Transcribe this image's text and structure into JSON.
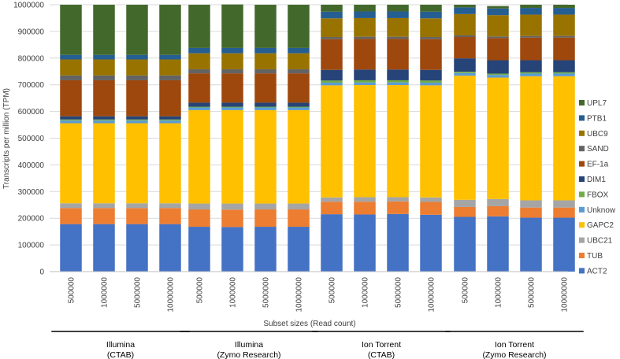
{
  "chart_data": {
    "type": "stacked-bar",
    "title": "",
    "xlabel": "Subset sizes (Read count)",
    "ylabel": "Transcripts per million (TPM)",
    "ylim": [
      0,
      1000000
    ],
    "yticks": [
      0,
      100000,
      200000,
      300000,
      400000,
      500000,
      600000,
      700000,
      800000,
      900000,
      1000000
    ],
    "grid": true,
    "legend_position": "right",
    "categories": [
      "500000",
      "1000000",
      "5000000",
      "10000000",
      "500000",
      "1000000",
      "5000000",
      "10000000",
      "500000",
      "1000000",
      "5000000",
      "10000000",
      "500000",
      "1000000",
      "5000000",
      "10000000"
    ],
    "groups": [
      {
        "line1": "Illumina",
        "line2": "(CTAB)"
      },
      {
        "line1": "Illumina",
        "line2": "(Zymo Research)"
      },
      {
        "line1": "Ion Torrent",
        "line2": "(CTAB)"
      },
      {
        "line1": "Ion Torrent",
        "line2": "(Zymo Research)"
      }
    ],
    "series": [
      {
        "name": "ACT2",
        "color": "#4472C4",
        "values": [
          178000,
          178000,
          178000,
          178000,
          168000,
          167000,
          168000,
          168000,
          215000,
          214000,
          216000,
          213000,
          205000,
          207000,
          202000,
          202000
        ]
      },
      {
        "name": "TUB",
        "color": "#ED7D31",
        "values": [
          60000,
          60000,
          60000,
          60000,
          65000,
          65000,
          65000,
          65000,
          47000,
          48000,
          47000,
          48000,
          37000,
          38000,
          38000,
          38000
        ]
      },
      {
        "name": "UBC21",
        "color": "#A5A5A5",
        "values": [
          18000,
          18000,
          18000,
          18000,
          22000,
          23000,
          22000,
          22000,
          16000,
          17000,
          16000,
          17000,
          27000,
          27000,
          27000,
          27000
        ]
      },
      {
        "name": "GAPC2",
        "color": "#FFC000",
        "values": [
          300000,
          300000,
          300000,
          300000,
          350000,
          350000,
          350000,
          350000,
          420000,
          420000,
          420000,
          420000,
          465000,
          455000,
          465000,
          465000
        ]
      },
      {
        "name": "Unknow",
        "color": "#5B9BD5",
        "values": [
          10000,
          10000,
          10000,
          10000,
          10000,
          10000,
          10000,
          10000,
          10000,
          10000,
          10000,
          10000,
          10000,
          10000,
          10000,
          10000
        ]
      },
      {
        "name": "FBOX",
        "color": "#70AD47",
        "values": [
          4000,
          4000,
          4000,
          4000,
          3000,
          3000,
          3000,
          3000,
          8000,
          8000,
          8000,
          8000,
          5000,
          5000,
          5000,
          5000
        ]
      },
      {
        "name": "DIM1",
        "color": "#264478",
        "values": [
          12000,
          12000,
          12000,
          12000,
          15000,
          15000,
          15000,
          15000,
          40000,
          40000,
          40000,
          40000,
          50000,
          50000,
          45000,
          45000
        ]
      },
      {
        "name": "EF-1a",
        "color": "#9E480E",
        "values": [
          135000,
          135000,
          135000,
          135000,
          110000,
          110000,
          110000,
          110000,
          115000,
          115000,
          115000,
          115000,
          80000,
          83000,
          85000,
          85000
        ]
      },
      {
        "name": "SAND",
        "color": "#636363",
        "values": [
          18000,
          18000,
          18000,
          18000,
          15000,
          15000,
          15000,
          15000,
          8000,
          8000,
          8000,
          8000,
          6000,
          6000,
          6000,
          6000
        ]
      },
      {
        "name": "UBC9",
        "color": "#997300",
        "values": [
          60000,
          60000,
          60000,
          60000,
          60000,
          60000,
          60000,
          60000,
          70000,
          70000,
          70000,
          70000,
          80000,
          80000,
          80000,
          80000
        ]
      },
      {
        "name": "PTB1",
        "color": "#255E91",
        "values": [
          17000,
          17000,
          17000,
          17000,
          20000,
          20000,
          20000,
          20000,
          25000,
          25000,
          25000,
          25000,
          25000,
          25000,
          25000,
          25000
        ]
      },
      {
        "name": "UPL7",
        "color": "#43682B",
        "values": [
          188000,
          188000,
          188000,
          188000,
          162000,
          163000,
          162000,
          162000,
          26000,
          25000,
          25000,
          26000,
          10000,
          9000,
          12000,
          12000
        ]
      }
    ]
  }
}
